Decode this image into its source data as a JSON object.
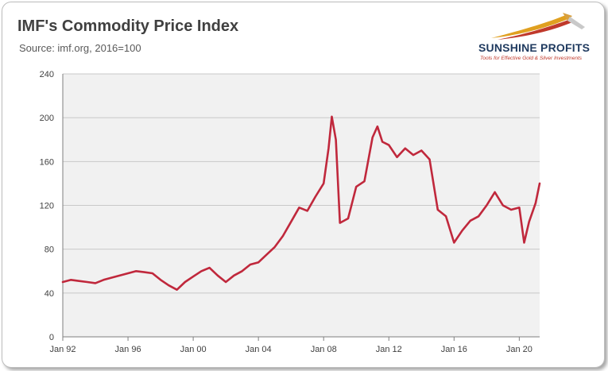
{
  "header": {
    "title": "IMF's Commodity Price Index",
    "subtitle": "Source: imf.org, 2016=100"
  },
  "logo": {
    "name": "SUNSHINE PROFITS",
    "tagline": "Tools for Effective Gold & Silver Investments"
  },
  "colors": {
    "line": "#c0283c",
    "plot_background": "#f1f1f1",
    "grid": "#c8c8c8"
  },
  "chart_data": {
    "type": "line",
    "title": "IMF's Commodity Price Index",
    "subtitle": "Source: imf.org, 2016=100",
    "xlabel": "",
    "ylabel": "",
    "ylim": [
      0,
      240
    ],
    "yticks": [
      "0",
      "40",
      "80",
      "120",
      "160",
      "200",
      "240"
    ],
    "xticks": [
      {
        "label": "Jan 92",
        "year": 1992
      },
      {
        "label": "Jan 96",
        "year": 1996
      },
      {
        "label": "Jan 00",
        "year": 2000
      },
      {
        "label": "Jan 04",
        "year": 2004
      },
      {
        "label": "Jan 08",
        "year": 2008
      },
      {
        "label": "Jan 12",
        "year": 2012
      },
      {
        "label": "Jan 16",
        "year": 2016
      },
      {
        "label": "Jan 20",
        "year": 2020
      }
    ],
    "xlim": [
      1992,
      2021.25
    ],
    "grid": "horizontal",
    "legend": "none",
    "series": [
      {
        "x": [
          1992.0,
          1992.5,
          1993.0,
          1993.5,
          1994.0,
          1994.5,
          1995.0,
          1995.5,
          1996.0,
          1996.5,
          1997.0,
          1997.5,
          1998.0,
          1998.5,
          1999.0,
          1999.5,
          2000.0,
          2000.5,
          2001.0,
          2001.5,
          2002.0,
          2002.5,
          2003.0,
          2003.5,
          2004.0,
          2004.5,
          2005.0,
          2005.5,
          2006.0,
          2006.5,
          2007.0,
          2007.5,
          2008.0,
          2008.3,
          2008.5,
          2008.75,
          2009.0,
          2009.5,
          2010.0,
          2010.5,
          2011.0,
          2011.3,
          2011.6,
          2012.0,
          2012.5,
          2013.0,
          2013.5,
          2014.0,
          2014.5,
          2015.0,
          2015.5,
          2016.0,
          2016.5,
          2017.0,
          2017.5,
          2018.0,
          2018.5,
          2019.0,
          2019.5,
          2020.0,
          2020.3,
          2020.6,
          2021.0,
          2021.25
        ],
        "y": [
          50,
          52,
          51,
          50,
          49,
          52,
          54,
          56,
          58,
          60,
          59,
          58,
          52,
          47,
          43,
          50,
          55,
          60,
          63,
          56,
          50,
          56,
          60,
          66,
          68,
          75,
          82,
          92,
          105,
          118,
          115,
          128,
          140,
          172,
          201,
          180,
          104,
          108,
          137,
          142,
          182,
          192,
          178,
          175,
          164,
          172,
          166,
          170,
          162,
          116,
          110,
          86,
          97,
          106,
          110,
          120,
          132,
          120,
          116,
          118,
          86,
          105,
          122,
          140
        ]
      }
    ]
  }
}
